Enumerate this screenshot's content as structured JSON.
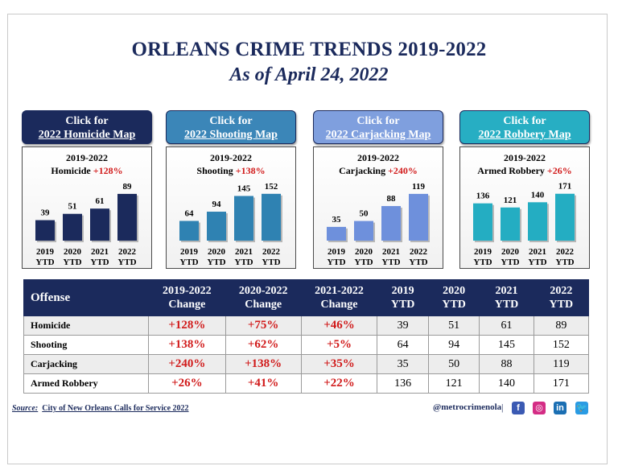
{
  "title": "ORLEANS CRIME TRENDS 2019-2022",
  "subtitle": "As of April 24, 2022",
  "colors": {
    "navy": "#1b2a5c",
    "red": "#d11a1a",
    "bar": "#1b2a5c"
  },
  "map_buttons": [
    {
      "line1": "Click for",
      "line2": "2022 Homicide Map",
      "bg": "#1b2a5c",
      "bar": "#1b2a5c"
    },
    {
      "line1": "Click for",
      "line2": "2022 Shooting Map",
      "bg": "#3b86b8",
      "bar": "#2f82b2"
    },
    {
      "line1": "Click for",
      "line2": "2022 Carjacking Map",
      "bg": "#7f9fde",
      "bar": "#6e90dc"
    },
    {
      "line1": "Click for",
      "line2": "2022 Robbery Map",
      "bg": "#27aec3",
      "bar": "#24adc2"
    }
  ],
  "chart_data": [
    {
      "type": "bar",
      "title_line1": "2019-2022",
      "title_label": "Homicide",
      "title_pct": "+128%",
      "categories": [
        "2019 YTD",
        "2020 YTD",
        "2021 YTD",
        "2022 YTD"
      ],
      "cat_year": [
        "2019",
        "2020",
        "2021",
        "2022"
      ],
      "cat_suffix": "YTD",
      "values": [
        39,
        51,
        61,
        89
      ],
      "ylim": [
        0,
        95
      ]
    },
    {
      "type": "bar",
      "title_line1": "2019-2022",
      "title_label": "Shooting",
      "title_pct": "+138%",
      "categories": [
        "2019 YTD",
        "2020 YTD",
        "2021 YTD",
        "2022 YTD"
      ],
      "cat_year": [
        "2019",
        "2020",
        "2021",
        "2022"
      ],
      "cat_suffix": "YTD",
      "values": [
        64,
        94,
        145,
        152
      ],
      "ylim": [
        0,
        162
      ]
    },
    {
      "type": "bar",
      "title_line1": "2019-2022",
      "title_label": "Carjacking",
      "title_pct": "+240%",
      "categories": [
        "2019 YTD",
        "2020 YTD",
        "2021 YTD",
        "2022 YTD"
      ],
      "cat_year": [
        "2019",
        "2020",
        "2021",
        "2022"
      ],
      "cat_suffix": "YTD",
      "values": [
        35,
        50,
        88,
        119
      ],
      "ylim": [
        0,
        127
      ]
    },
    {
      "type": "bar",
      "title_line1": "2019-2022",
      "title_label": "Armed Robbery",
      "title_pct": "+26%",
      "categories": [
        "2019 YTD",
        "2020 YTD",
        "2021 YTD",
        "2022 YTD"
      ],
      "cat_year": [
        "2019",
        "2020",
        "2021",
        "2022"
      ],
      "cat_suffix": "YTD",
      "values": [
        136,
        121,
        140,
        171
      ],
      "ylim": [
        0,
        182
      ]
    }
  ],
  "table": {
    "headers": [
      "Offense",
      "2019-2022 Change",
      "2020-2022 Change",
      "2021-2022 Change",
      "2019 YTD",
      "2020 YTD",
      "2021 YTD",
      "2022 YTD"
    ],
    "rows": [
      [
        "Homicide",
        "+128%",
        "+75%",
        "+46%",
        "39",
        "51",
        "61",
        "89"
      ],
      [
        "Shooting",
        "+138%",
        "+62%",
        "+5%",
        "64",
        "94",
        "145",
        "152"
      ],
      [
        "Carjacking",
        "+240%",
        "+138%",
        "+35%",
        "35",
        "50",
        "88",
        "119"
      ],
      [
        "Armed Robbery",
        "+26%",
        "+41%",
        "+22%",
        "136",
        "121",
        "140",
        "171"
      ]
    ]
  },
  "footer": {
    "source_label": "Source:",
    "source_text": "City of New Orleans Calls for Service 2022",
    "handle": "@metrocrimenola",
    "separator": "|",
    "social": [
      {
        "icon": "facebook-icon",
        "glyph": "f",
        "color": "#3b5ab3"
      },
      {
        "icon": "instagram-icon",
        "glyph": "◎",
        "color": "#d42d85"
      },
      {
        "icon": "linkedin-icon",
        "glyph": "in",
        "color": "#1b6fb3"
      },
      {
        "icon": "twitter-icon",
        "glyph": "🐦",
        "color": "#2a9be3"
      }
    ]
  }
}
